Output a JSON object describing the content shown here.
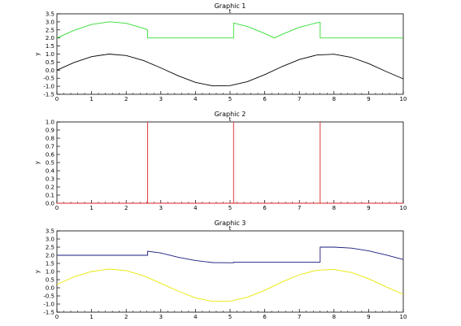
{
  "window": {
    "background": "#ffffff"
  },
  "chart_data": [
    {
      "type": "line",
      "title": "Graphic 1",
      "xlabel": "t",
      "ylabel": "y",
      "xlim": [
        0,
        10
      ],
      "ylim": [
        -1.5,
        3.5
      ],
      "xticks": [
        0,
        1,
        2,
        3,
        4,
        5,
        6,
        7,
        8,
        9,
        10
      ],
      "xtick_labels": [
        "0",
        "1",
        "2",
        "3",
        "4",
        "5",
        "6",
        "7",
        "8",
        "9",
        "10"
      ],
      "yticks": [
        -1.5,
        -1.0,
        -0.5,
        0.0,
        0.5,
        1.0,
        1.5,
        2.0,
        2.5,
        3.0,
        3.5
      ],
      "ytick_labels": [
        "-1.5",
        "-1.0",
        "-0.5",
        "0.0",
        "0.5",
        "1.0",
        "1.5",
        "2.0",
        "2.5",
        "3.0",
        "3.5"
      ],
      "grid": false,
      "series": [
        {
          "color": "#33dd33",
          "x": [
            0,
            0.5,
            1.0,
            1.5,
            1.57,
            2.0,
            2.5,
            2.62,
            2.62,
            3,
            4,
            5,
            5.1,
            5.1,
            5.5,
            6.0,
            6.28,
            6.5,
            7.0,
            7.5,
            7.6,
            7.6,
            8,
            9,
            10
          ],
          "y": [
            2.0,
            2.48,
            2.84,
            3.0,
            3.0,
            2.91,
            2.6,
            2.5,
            2.0,
            2.0,
            2.0,
            2.0,
            2.0,
            2.93,
            2.71,
            2.28,
            2.0,
            2.22,
            2.66,
            2.94,
            2.97,
            2.0,
            2.0,
            2.0,
            2.0
          ]
        },
        {
          "color": "#000000",
          "x": [
            0,
            0.5,
            1.0,
            1.5,
            2.0,
            2.5,
            3.0,
            3.5,
            4.0,
            4.5,
            5.0,
            5.5,
            6.0,
            6.5,
            7.0,
            7.5,
            8.0,
            8.5,
            9.0,
            9.5,
            10.0
          ],
          "y": [
            0.0,
            0.48,
            0.84,
            1.0,
            0.91,
            0.6,
            0.14,
            -0.35,
            -0.76,
            -0.98,
            -0.96,
            -0.71,
            -0.28,
            0.22,
            0.66,
            0.94,
            0.99,
            0.8,
            0.41,
            -0.08,
            -0.54
          ]
        }
      ]
    },
    {
      "type": "line",
      "title": "Graphic 2",
      "xlabel": "t",
      "ylabel": "y",
      "xlim": [
        0,
        10
      ],
      "ylim": [
        0,
        1.0
      ],
      "xticks": [
        0,
        1,
        2,
        3,
        4,
        5,
        6,
        7,
        8,
        9,
        10
      ],
      "xtick_labels": [
        "0",
        "1",
        "2",
        "3",
        "4",
        "5",
        "6",
        "7",
        "8",
        "9",
        "10"
      ],
      "yticks": [
        0.0,
        0.1,
        0.2,
        0.3,
        0.4,
        0.5,
        0.6,
        0.7,
        0.8,
        0.9,
        1.0
      ],
      "ytick_labels": [
        "0.0",
        "0.1",
        "0.2",
        "0.3",
        "0.4",
        "0.5",
        "0.6",
        "0.7",
        "0.8",
        "0.9",
        "1.0"
      ],
      "grid": false,
      "series": [
        {
          "color": "#dd2222",
          "x": [
            0,
            2.62,
            2.62,
            2.62,
            5.1,
            5.1,
            5.1,
            7.6,
            7.6,
            7.6,
            10
          ],
          "y": [
            0,
            0,
            1.0,
            0,
            0,
            1.0,
            0,
            0,
            1.0,
            0,
            0
          ]
        }
      ]
    },
    {
      "type": "line",
      "title": "Graphic 3",
      "xlabel": "t",
      "ylabel": "y",
      "xlim": [
        0,
        10
      ],
      "ylim": [
        -1.5,
        3.5
      ],
      "xticks": [
        0,
        1,
        2,
        3,
        4,
        5,
        6,
        7,
        8,
        9,
        10
      ],
      "xtick_labels": [
        "0",
        "1",
        "2",
        "3",
        "4",
        "5",
        "6",
        "7",
        "8",
        "9",
        "10"
      ],
      "yticks": [
        -1.5,
        -1.0,
        -0.5,
        0.0,
        0.5,
        1.0,
        1.5,
        2.0,
        2.5,
        3.0,
        3.5
      ],
      "ytick_labels": [
        "-1.5",
        "-1.0",
        "-0.5",
        "0.0",
        "0.5",
        "1.0",
        "1.5",
        "2.0",
        "2.5",
        "3.0",
        "3.5"
      ],
      "grid": false,
      "series": [
        {
          "color": "#1a1a80",
          "x": [
            0,
            1,
            2,
            2.62,
            2.62,
            3.0,
            3.5,
            4.0,
            4.5,
            5.0,
            5.1,
            5.1,
            6,
            7,
            7.6,
            7.6,
            8.0,
            8.5,
            9.0,
            9.5,
            10.0
          ],
          "y": [
            2.0,
            2.0,
            2.0,
            2.0,
            2.25,
            2.14,
            1.88,
            1.68,
            1.55,
            1.54,
            1.54,
            1.58,
            1.58,
            1.58,
            1.58,
            2.5,
            2.5,
            2.44,
            2.27,
            2.02,
            1.74
          ]
        },
        {
          "color": "#e8e800",
          "x": [
            0,
            0.5,
            1.0,
            1.5,
            2.0,
            2.5,
            3.0,
            3.5,
            4.0,
            4.5,
            5.0,
            5.5,
            6.0,
            6.5,
            7.0,
            7.5,
            8.0,
            8.5,
            9.0,
            9.5,
            10.0
          ],
          "y": [
            0.2,
            0.68,
            1.0,
            1.15,
            1.06,
            0.74,
            0.28,
            -0.2,
            -0.62,
            -0.84,
            -0.82,
            -0.58,
            -0.16,
            0.36,
            0.8,
            1.08,
            1.13,
            0.94,
            0.56,
            0.06,
            -0.4
          ]
        }
      ]
    }
  ]
}
